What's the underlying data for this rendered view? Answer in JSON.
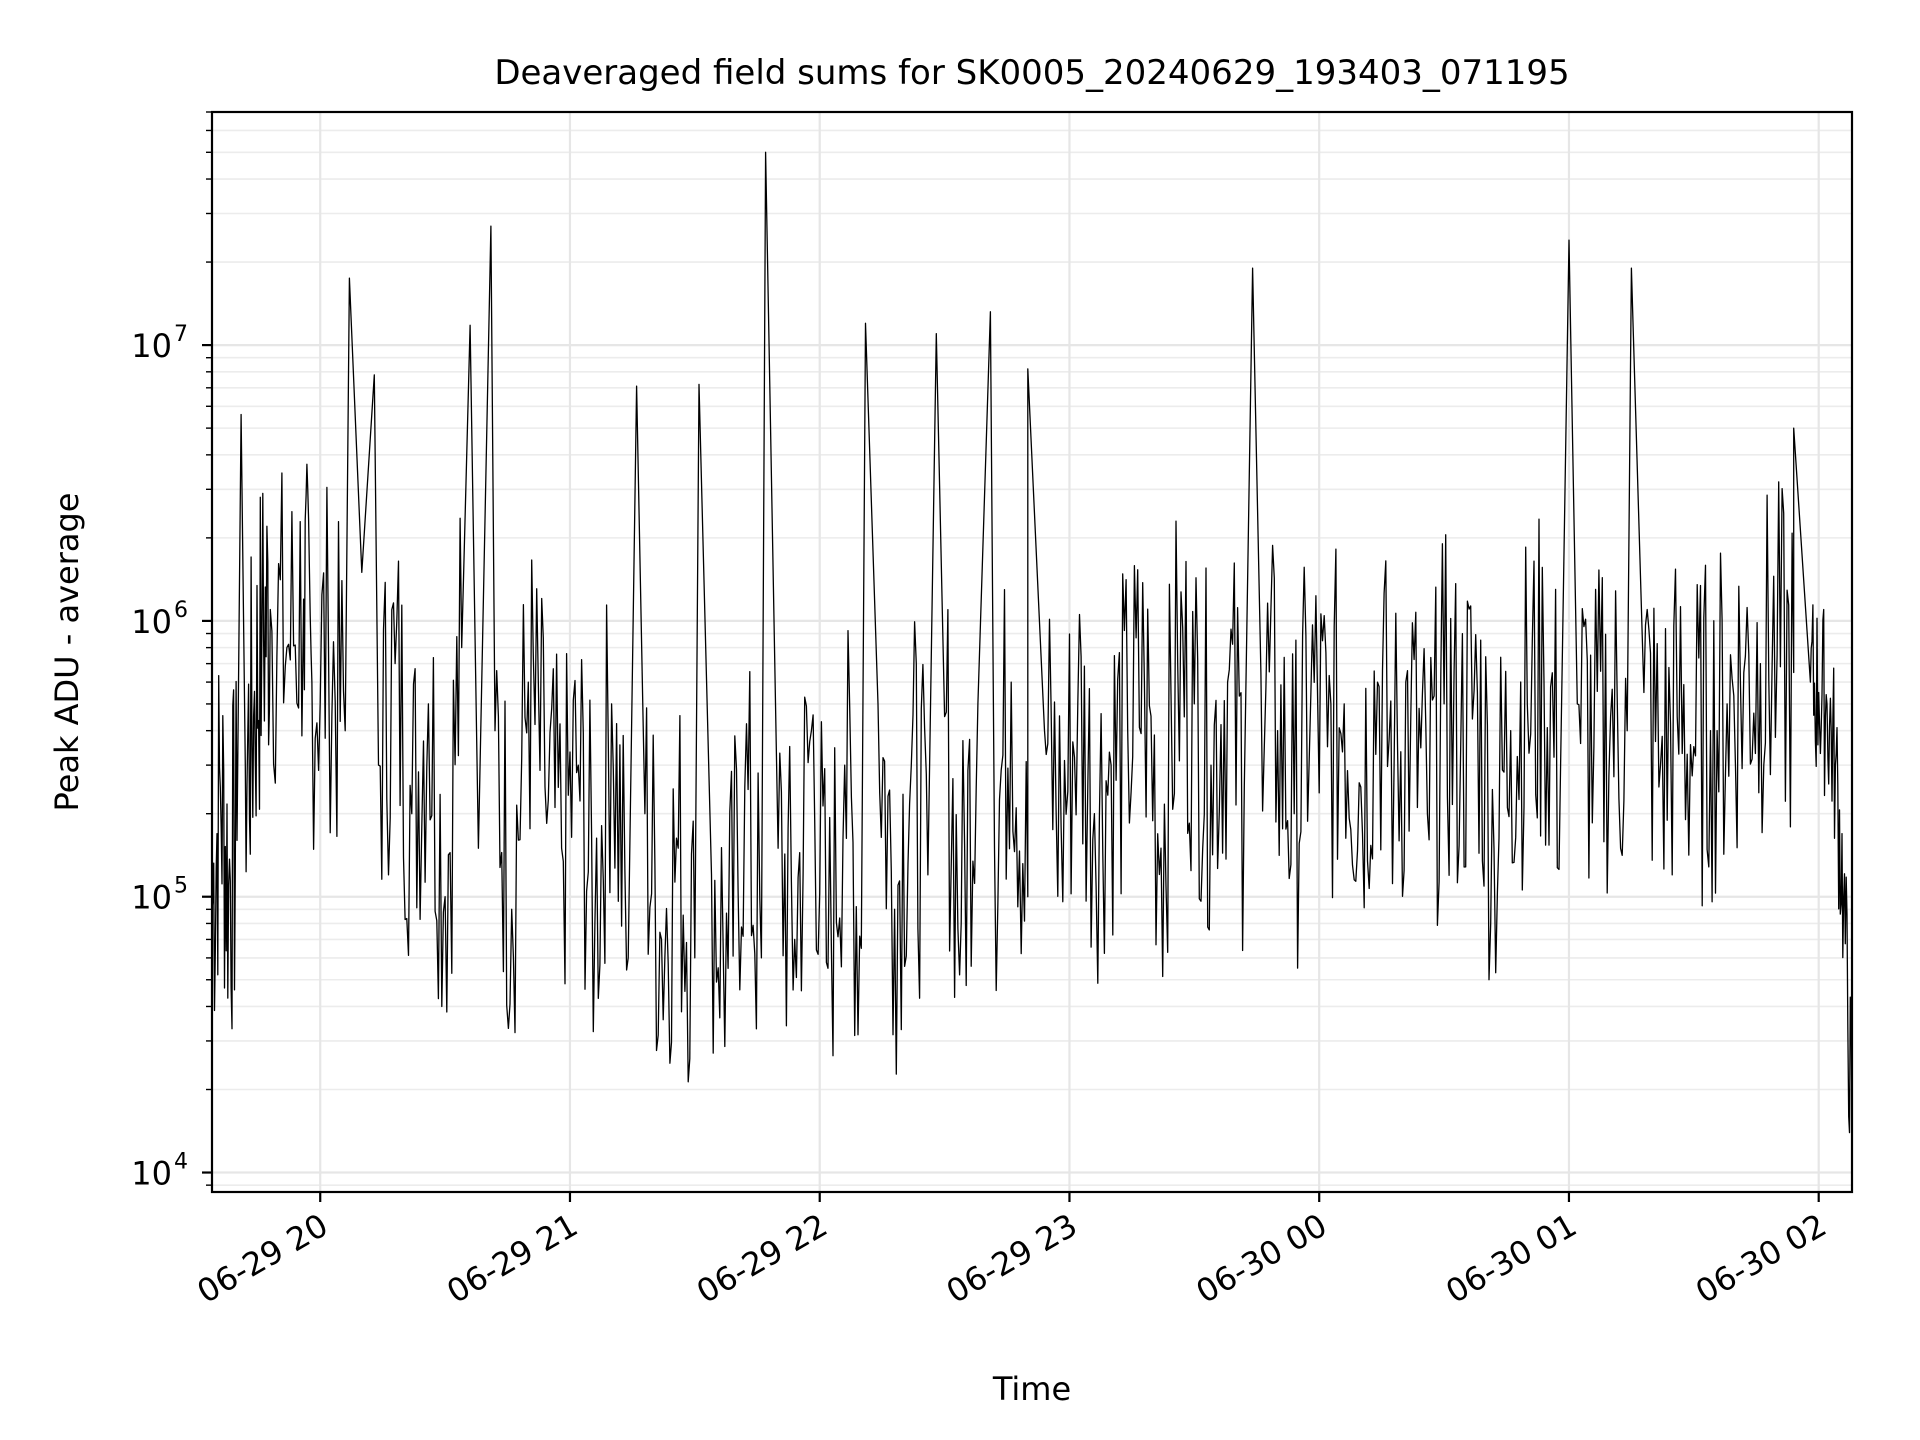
{
  "chart_data": {
    "type": "line",
    "title": "Deaveraged field sums for SK0005_20240629_193403_071195",
    "xlabel": "Time",
    "ylabel": "Peak ADU - average",
    "yscale": "log",
    "xlim": [
      "06-29 19:34",
      "06-30 02:08"
    ],
    "ylim": [
      8500,
      70000000
    ],
    "grid": "both (major and minor)",
    "line_color": "#000000",
    "x_ticks": [
      "06-29 20",
      "06-29 21",
      "06-29 22",
      "06-29 23",
      "06-30 00",
      "06-30 01",
      "06-30 02"
    ],
    "y_ticks": [
      {
        "base": "10",
        "exp": "4",
        "value": 10000
      },
      {
        "base": "10",
        "exp": "5",
        "value": 100000
      },
      {
        "base": "10",
        "exp": "6",
        "value": 1000000
      },
      {
        "base": "10",
        "exp": "7",
        "value": 10000000
      }
    ],
    "series": [
      {
        "x": [
          "06-29 19:34",
          "06-29 19:36",
          "06-29 19:38",
          "06-29 19:40",
          "06-29 19:42",
          "06-29 19:44",
          "06-29 19:46",
          "06-29 19:48",
          "06-29 19:52",
          "06-29 19:56",
          "06-29 19:58",
          "06-29 20:02",
          "06-29 20:06",
          "06-29 20:10",
          "06-29 20:14",
          "06-29 20:18",
          "06-29 20:22",
          "06-29 20:26",
          "06-29 20:30",
          "06-29 20:34",
          "06-29 20:38",
          "06-29 20:42",
          "06-29 20:46",
          "06-29 20:50",
          "06-29 20:54",
          "06-29 20:58",
          "06-29 21:02",
          "06-29 21:06",
          "06-29 21:10",
          "06-29 21:14",
          "06-29 21:18",
          "06-29 21:22",
          "06-29 21:26",
          "06-29 21:30",
          "06-29 21:34",
          "06-29 21:38",
          "06-29 21:42",
          "06-29 21:46",
          "06-29 21:50",
          "06-29 21:54",
          "06-29 21:58",
          "06-29 22:02",
          "06-29 22:06",
          "06-29 22:10",
          "06-29 22:14",
          "06-29 22:18",
          "06-29 22:22",
          "06-29 22:26",
          "06-29 22:30",
          "06-29 22:34",
          "06-29 22:38",
          "06-29 22:42",
          "06-29 22:46",
          "06-29 22:50",
          "06-29 22:54",
          "06-29 22:58",
          "06-29 23:02",
          "06-29 23:06",
          "06-29 23:10",
          "06-29 23:14",
          "06-29 23:18",
          "06-29 23:22",
          "06-29 23:26",
          "06-29 23:30",
          "06-29 23:34",
          "06-29 23:38",
          "06-29 23:42",
          "06-29 23:46",
          "06-29 23:50",
          "06-29 23:54",
          "06-29 23:58",
          "06-30 00:02",
          "06-30 00:06",
          "06-30 00:10",
          "06-30 00:14",
          "06-30 00:18",
          "06-30 00:22",
          "06-30 00:26",
          "06-30 00:30",
          "06-30 00:34",
          "06-30 00:38",
          "06-30 00:42",
          "06-30 00:46",
          "06-30 00:50",
          "06-30 00:54",
          "06-30 00:58",
          "06-30 01:02",
          "06-30 01:06",
          "06-30 01:10",
          "06-30 01:14",
          "06-30 01:18",
          "06-30 01:22",
          "06-30 01:26",
          "06-30 01:30",
          "06-30 01:34",
          "06-30 01:38",
          "06-30 01:42",
          "06-30 01:46",
          "06-30 01:50",
          "06-30 01:54",
          "06-30 01:58",
          "06-30 02:00",
          "06-30 02:02",
          "06-30 02:04",
          "06-30 02:06",
          "06-30 02:08"
        ],
        "y": [
          90000,
          250000,
          110000,
          160000,
          300000,
          450000,
          900000,
          1100000,
          800000,
          1200000,
          600000,
          800000,
          400000,
          1500000,
          300000,
          700000,
          200000,
          500000,
          100000,
          800000,
          150000,
          400000,
          90000,
          600000,
          250000,
          150000,
          300000,
          80000,
          500000,
          60000,
          200000,
          70000,
          150000,
          60000,
          120000,
          55000,
          250000,
          60000,
          150000,
          70000,
          400000,
          55000,
          300000,
          65000,
          500000,
          90000,
          300000,
          120000,
          450000,
          80000,
          500000,
          150000,
          600000,
          100000,
          400000,
          180000,
          500000,
          200000,
          300000,
          400000,
          600000,
          150000,
          700000,
          500000,
          300000,
          600000,
          250000,
          650000,
          400000,
          200000,
          550000,
          350000,
          500000,
          250000,
          600000,
          300000,
          450000,
          200000,
          500000,
          350000,
          550000,
          150000,
          400000,
          500000,
          600000,
          300000,
          500000,
          350000,
          450000,
          400000,
          550000,
          300000,
          450000,
          350000,
          400000,
          500000,
          650000,
          700000,
          750000,
          650000,
          600000,
          550000,
          500000,
          300000,
          100000,
          15000
        ]
      }
    ],
    "spikes": [
      {
        "x": "06-29 19:41",
        "y": 5600000
      },
      {
        "x": "06-29 20:07",
        "y": 17500000
      },
      {
        "x": "06-29 20:13",
        "y": 7800000
      },
      {
        "x": "06-29 20:36",
        "y": 11800000
      },
      {
        "x": "06-29 20:41",
        "y": 27000000
      },
      {
        "x": "06-29 21:16",
        "y": 7100000
      },
      {
        "x": "06-29 21:31",
        "y": 7200000
      },
      {
        "x": "06-29 21:47",
        "y": 50000000
      },
      {
        "x": "06-29 22:11",
        "y": 12000000
      },
      {
        "x": "06-29 22:28",
        "y": 11000000
      },
      {
        "x": "06-29 22:41",
        "y": 13200000
      },
      {
        "x": "06-29 22:50",
        "y": 8200000
      },
      {
        "x": "06-29 23:44",
        "y": 19000000
      },
      {
        "x": "06-30 01:00",
        "y": 24000000
      },
      {
        "x": "06-30 01:15",
        "y": 19000000
      },
      {
        "x": "06-30 01:54",
        "y": 5000000
      }
    ]
  }
}
